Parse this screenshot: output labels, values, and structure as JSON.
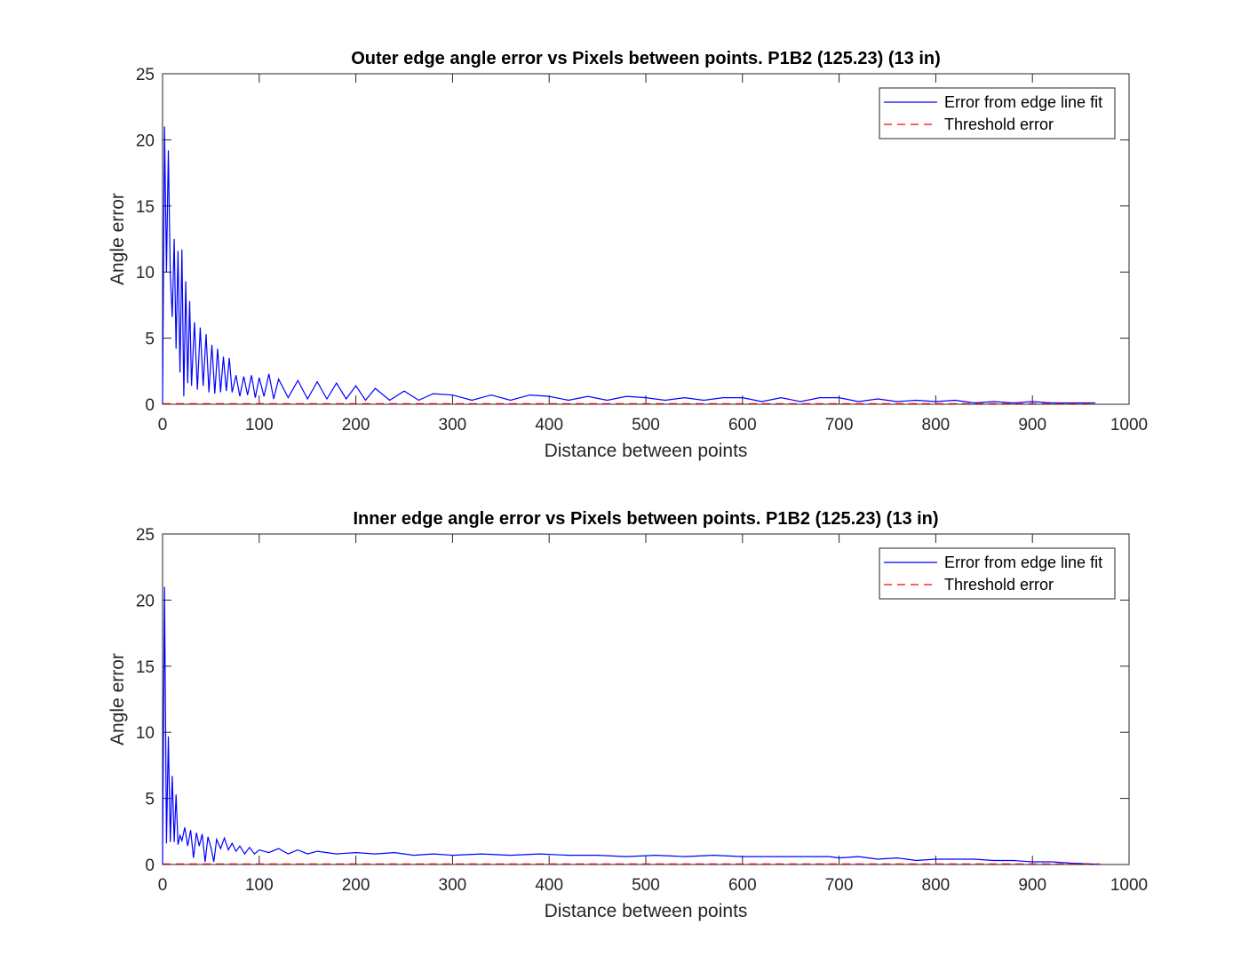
{
  "chart_data": [
    {
      "type": "line",
      "title": "Outer edge angle error vs Pixels between points. P1B2 (125.23) (13 in)",
      "xlabel": "Distance between points",
      "ylabel": "Angle error",
      "xlim": [
        0,
        1000
      ],
      "ylim": [
        0,
        25
      ],
      "xticks": [
        "0",
        "100",
        "200",
        "300",
        "400",
        "500",
        "600",
        "700",
        "800",
        "900",
        "1000"
      ],
      "yticks": [
        "0",
        "5",
        "10",
        "15",
        "20",
        "25"
      ],
      "grid": false,
      "legend_position": "top-right",
      "series": [
        {
          "name": "Error from edge line fit",
          "color": "#0000ff",
          "style": "solid",
          "x": [
            0,
            2,
            4,
            6,
            8,
            10,
            12,
            14,
            16,
            18,
            20,
            22,
            24,
            26,
            28,
            30,
            33,
            36,
            39,
            42,
            45,
            48,
            51,
            54,
            57,
            60,
            63,
            66,
            69,
            72,
            76,
            80,
            84,
            88,
            92,
            96,
            100,
            105,
            110,
            115,
            120,
            130,
            140,
            150,
            160,
            170,
            180,
            190,
            200,
            210,
            220,
            235,
            250,
            265,
            280,
            300,
            320,
            340,
            360,
            380,
            400,
            420,
            440,
            460,
            480,
            500,
            520,
            540,
            560,
            580,
            600,
            620,
            640,
            660,
            680,
            700,
            720,
            740,
            760,
            780,
            800,
            820,
            840,
            860,
            880,
            900,
            920,
            940,
            965
          ],
          "y": [
            0,
            21.0,
            10.0,
            19.2,
            9.8,
            6.6,
            12.5,
            4.2,
            11.6,
            2.4,
            11.7,
            0.6,
            9.3,
            1.6,
            7.8,
            1.4,
            6.2,
            1.1,
            5.8,
            1.4,
            5.3,
            0.9,
            4.5,
            0.8,
            4.2,
            0.9,
            3.6,
            1.0,
            3.5,
            0.9,
            2.2,
            0.6,
            2.1,
            0.7,
            2.2,
            0.5,
            2.0,
            0.6,
            2.3,
            0.4,
            1.9,
            0.5,
            1.8,
            0.4,
            1.7,
            0.4,
            1.6,
            0.4,
            1.4,
            0.3,
            1.2,
            0.3,
            1.0,
            0.3,
            0.8,
            0.7,
            0.3,
            0.7,
            0.3,
            0.7,
            0.6,
            0.3,
            0.6,
            0.3,
            0.6,
            0.5,
            0.3,
            0.5,
            0.3,
            0.5,
            0.5,
            0.2,
            0.5,
            0.2,
            0.5,
            0.5,
            0.2,
            0.4,
            0.2,
            0.3,
            0.2,
            0.3,
            0.1,
            0.2,
            0.1,
            0.2,
            0.1,
            0.1,
            0.1
          ]
        },
        {
          "name": "Threshold error",
          "color": "#ff0000",
          "style": "dashed",
          "x": [
            0,
            965
          ],
          "y": [
            0.05,
            0.05
          ]
        }
      ]
    },
    {
      "type": "line",
      "title": "Inner edge angle error vs Pixels between points. P1B2 (125.23) (13 in)",
      "xlabel": "Distance between points",
      "ylabel": "Angle error",
      "xlim": [
        0,
        1000
      ],
      "ylim": [
        0,
        25
      ],
      "xticks": [
        "0",
        "100",
        "200",
        "300",
        "400",
        "500",
        "600",
        "700",
        "800",
        "900",
        "1000"
      ],
      "yticks": [
        "0",
        "5",
        "10",
        "15",
        "20",
        "25"
      ],
      "grid": false,
      "legend_position": "top-right",
      "series": [
        {
          "name": "Error from edge line fit",
          "color": "#0000ff",
          "style": "solid",
          "x": [
            0,
            2,
            4,
            6,
            8,
            10,
            12,
            14,
            16,
            18,
            20,
            23,
            26,
            29,
            32,
            35,
            38,
            41,
            44,
            47,
            50,
            53,
            56,
            60,
            64,
            68,
            72,
            76,
            80,
            85,
            90,
            95,
            100,
            110,
            120,
            130,
            140,
            150,
            160,
            180,
            200,
            220,
            240,
            260,
            280,
            300,
            330,
            360,
            390,
            420,
            450,
            480,
            510,
            540,
            570,
            600,
            630,
            660,
            690,
            700,
            720,
            740,
            760,
            780,
            800,
            820,
            840,
            860,
            880,
            900,
            920,
            940,
            960,
            970
          ],
          "y": [
            0,
            21.0,
            1.6,
            9.7,
            1.7,
            6.7,
            1.7,
            5.3,
            1.5,
            2.2,
            1.8,
            2.8,
            1.4,
            2.6,
            0.5,
            2.4,
            1.4,
            2.3,
            0.2,
            2.1,
            1.3,
            0.2,
            1.9,
            1.2,
            2.0,
            1.1,
            1.6,
            1.0,
            1.4,
            0.8,
            1.3,
            0.8,
            1.1,
            0.9,
            1.2,
            0.8,
            1.1,
            0.8,
            1.0,
            0.8,
            0.9,
            0.8,
            0.9,
            0.7,
            0.8,
            0.7,
            0.8,
            0.7,
            0.8,
            0.7,
            0.7,
            0.6,
            0.7,
            0.6,
            0.7,
            0.6,
            0.6,
            0.6,
            0.6,
            0.5,
            0.6,
            0.4,
            0.5,
            0.3,
            0.4,
            0.4,
            0.4,
            0.3,
            0.3,
            0.2,
            0.2,
            0.1,
            0.05,
            0.0
          ]
        },
        {
          "name": "Threshold error",
          "color": "#ff0000",
          "style": "dashed",
          "x": [
            0,
            970
          ],
          "y": [
            0.05,
            0.05
          ]
        }
      ]
    }
  ]
}
